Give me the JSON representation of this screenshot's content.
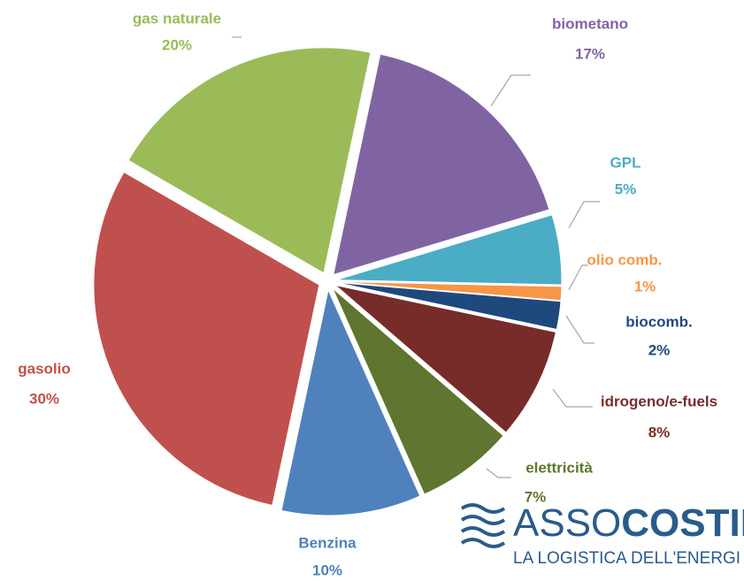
{
  "chart_data": {
    "type": "pie",
    "categories": [
      "biometano",
      "GPL",
      "olio comb.",
      "biocomb.",
      "idrogeno/e-fuels",
      "elettricità",
      "Benzina",
      "gasolio",
      "gas naturale"
    ],
    "values": [
      17,
      5,
      1,
      2,
      8,
      7,
      10,
      30,
      20
    ],
    "value_labels": [
      "17%",
      "5%",
      "1%",
      "2%",
      "8%",
      "7%",
      "10%",
      "30%",
      "20%"
    ],
    "colors": [
      "#8064a2",
      "#4bacc6",
      "#f79646",
      "#1f497d",
      "#772c2a",
      "#5f7530",
      "#4f81bd",
      "#c0504d",
      "#9bbb59"
    ]
  },
  "logo": {
    "name_light": "ASSO",
    "name_bold": "COSTIER",
    "tagline": "LA LOGISTICA DELL'ENERGI"
  }
}
